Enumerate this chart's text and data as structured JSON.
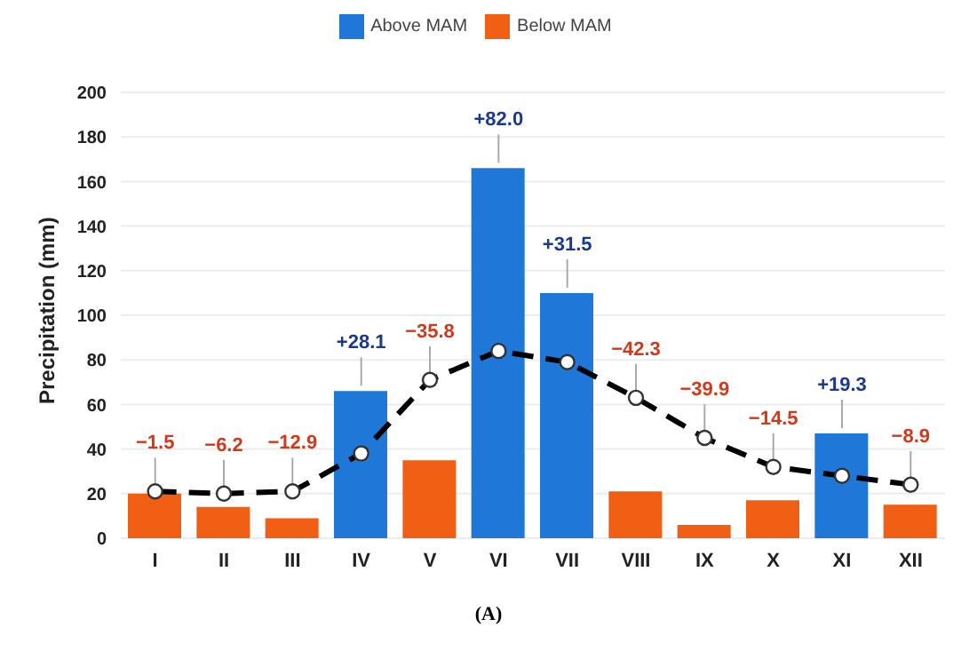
{
  "chart_data": {
    "type": "bar",
    "ylabel": "Precipitation (mm)",
    "categories": [
      "I",
      "II",
      "III",
      "IV",
      "V",
      "VI",
      "VII",
      "VIII",
      "IX",
      "X",
      "XI",
      "XII"
    ],
    "series": [
      {
        "name": "Above MAM",
        "color": "#1f77d8",
        "values": [
          null,
          null,
          null,
          66,
          null,
          166,
          110,
          null,
          null,
          null,
          47,
          null
        ]
      },
      {
        "name": "Below MAM",
        "color": "#f05f14",
        "values": [
          20,
          14,
          9,
          null,
          35,
          null,
          null,
          21,
          6,
          17,
          null,
          15
        ]
      },
      {
        "type": "line",
        "color": "#000000",
        "marker": "circle",
        "line_style": "dashed",
        "values": [
          21,
          20,
          21,
          38,
          71,
          84,
          79,
          63,
          45,
          32,
          28,
          24
        ]
      }
    ],
    "stacked": true,
    "ylim": [
      0,
      200
    ],
    "yticks": [
      0,
      20,
      40,
      60,
      80,
      100,
      120,
      140,
      160,
      180,
      200
    ],
    "grid": "y",
    "legend": "top",
    "annotations": [
      {
        "text": "−1.5",
        "x": "I",
        "y": 21
      },
      {
        "text": "−6.2",
        "x": "II",
        "y": 20
      },
      {
        "text": "−12.9",
        "x": "III",
        "y": 21
      },
      {
        "text": "+28.1",
        "x": "IV",
        "y": 66
      },
      {
        "text": "−35.8",
        "x": "V",
        "y": 71
      },
      {
        "text": "+82.0",
        "x": "VI",
        "y": 166
      },
      {
        "text": "+31.5",
        "x": "VII",
        "y": 110
      },
      {
        "text": "−42.3",
        "x": "VIII",
        "y": 63
      },
      {
        "text": "−39.9",
        "x": "IX",
        "y": 45
      },
      {
        "text": "−14.5",
        "x": "X",
        "y": 32
      },
      {
        "text": "+19.3",
        "x": "XI",
        "y": 47
      },
      {
        "text": "−8.9",
        "x": "XII",
        "y": 24
      },
      "(A)"
    ]
  }
}
